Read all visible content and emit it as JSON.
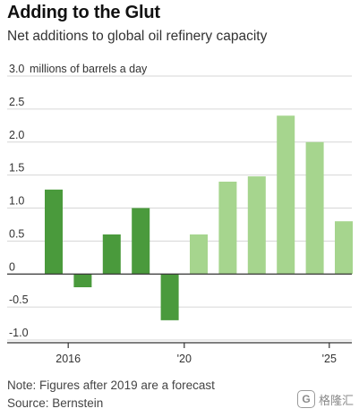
{
  "title": "Adding to the Glut",
  "subtitle": "Net additions to global oil refinery capacity",
  "note": "Note: Figures after 2019 are a forecast",
  "source": "Source: Bernstein",
  "watermark": {
    "icon": "gelonghui-logo-icon",
    "text": "格隆汇"
  },
  "colors": {
    "actual": "#4a9a3c",
    "forecast": "#a6d58e",
    "axis": "#333333",
    "grid": "#d6d6d6"
  },
  "chart_data": {
    "type": "bar",
    "ylabel": "millions of barrels a day",
    "ylim": [
      -1.0,
      3.0
    ],
    "yticks": [
      {
        "value": 3.0,
        "label": "3.0"
      },
      {
        "value": 2.5,
        "label": "2.5"
      },
      {
        "value": 2.0,
        "label": "2.0"
      },
      {
        "value": 1.5,
        "label": "1.5"
      },
      {
        "value": 1.0,
        "label": "1.0"
      },
      {
        "value": 0.5,
        "label": "0.5"
      },
      {
        "value": 0,
        "label": "0"
      },
      {
        "value": -0.5,
        "label": "-0.5"
      },
      {
        "value": -1.0,
        "label": "-1.0"
      }
    ],
    "xticks": [
      {
        "year": 2016,
        "label": "2016"
      },
      {
        "year": 2020,
        "label": "'20"
      },
      {
        "year": 2025,
        "label": "'25"
      }
    ],
    "grid": true,
    "bars": [
      {
        "year": 2015,
        "value": 1.28,
        "forecast": false
      },
      {
        "year": 2016,
        "value": -0.2,
        "forecast": false
      },
      {
        "year": 2017,
        "value": 0.6,
        "forecast": false
      },
      {
        "year": 2018,
        "value": 1.0,
        "forecast": false
      },
      {
        "year": 2019,
        "value": -0.7,
        "forecast": false
      },
      {
        "year": 2020,
        "value": 0.6,
        "forecast": true
      },
      {
        "year": 2021,
        "value": 1.4,
        "forecast": true
      },
      {
        "year": 2022,
        "value": 1.48,
        "forecast": true
      },
      {
        "year": 2023,
        "value": 2.4,
        "forecast": true
      },
      {
        "year": 2024,
        "value": 2.0,
        "forecast": true
      },
      {
        "year": 2025,
        "value": 0.8,
        "forecast": true
      }
    ]
  }
}
